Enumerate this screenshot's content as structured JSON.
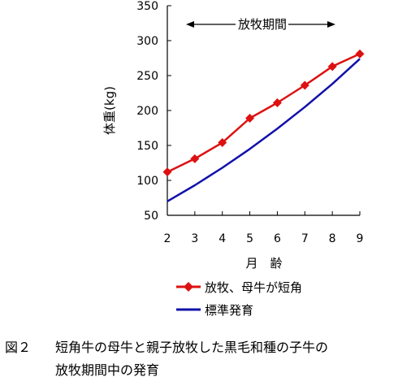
{
  "chart_data": {
    "type": "line",
    "x": [
      2,
      3,
      4,
      5,
      6,
      7,
      8,
      9
    ],
    "xlabel": "月　齢",
    "ylabel": "体重(kg)",
    "ylim": [
      50,
      350
    ],
    "yticks": [
      50,
      100,
      150,
      200,
      250,
      300,
      350
    ],
    "xlim": [
      2,
      9
    ],
    "grid": false,
    "legend_position": "bottom",
    "annotation": "放牧期間",
    "series": [
      {
        "name": "放牧、母牛が短角",
        "color": "#dd1111",
        "marker": "diamond",
        "values": [
          112,
          131,
          154,
          189,
          211,
          236,
          263,
          281
        ]
      },
      {
        "name": "標準発育",
        "color": "#1111aa",
        "marker": "none",
        "values": [
          70,
          93,
          118,
          145,
          174,
          205,
          238,
          274
        ]
      }
    ]
  },
  "caption": {
    "number": "図２",
    "line1": "短角牛の母牛と親子放牧した黒毛和種の子牛の",
    "line2": "放牧期間中の発育"
  }
}
